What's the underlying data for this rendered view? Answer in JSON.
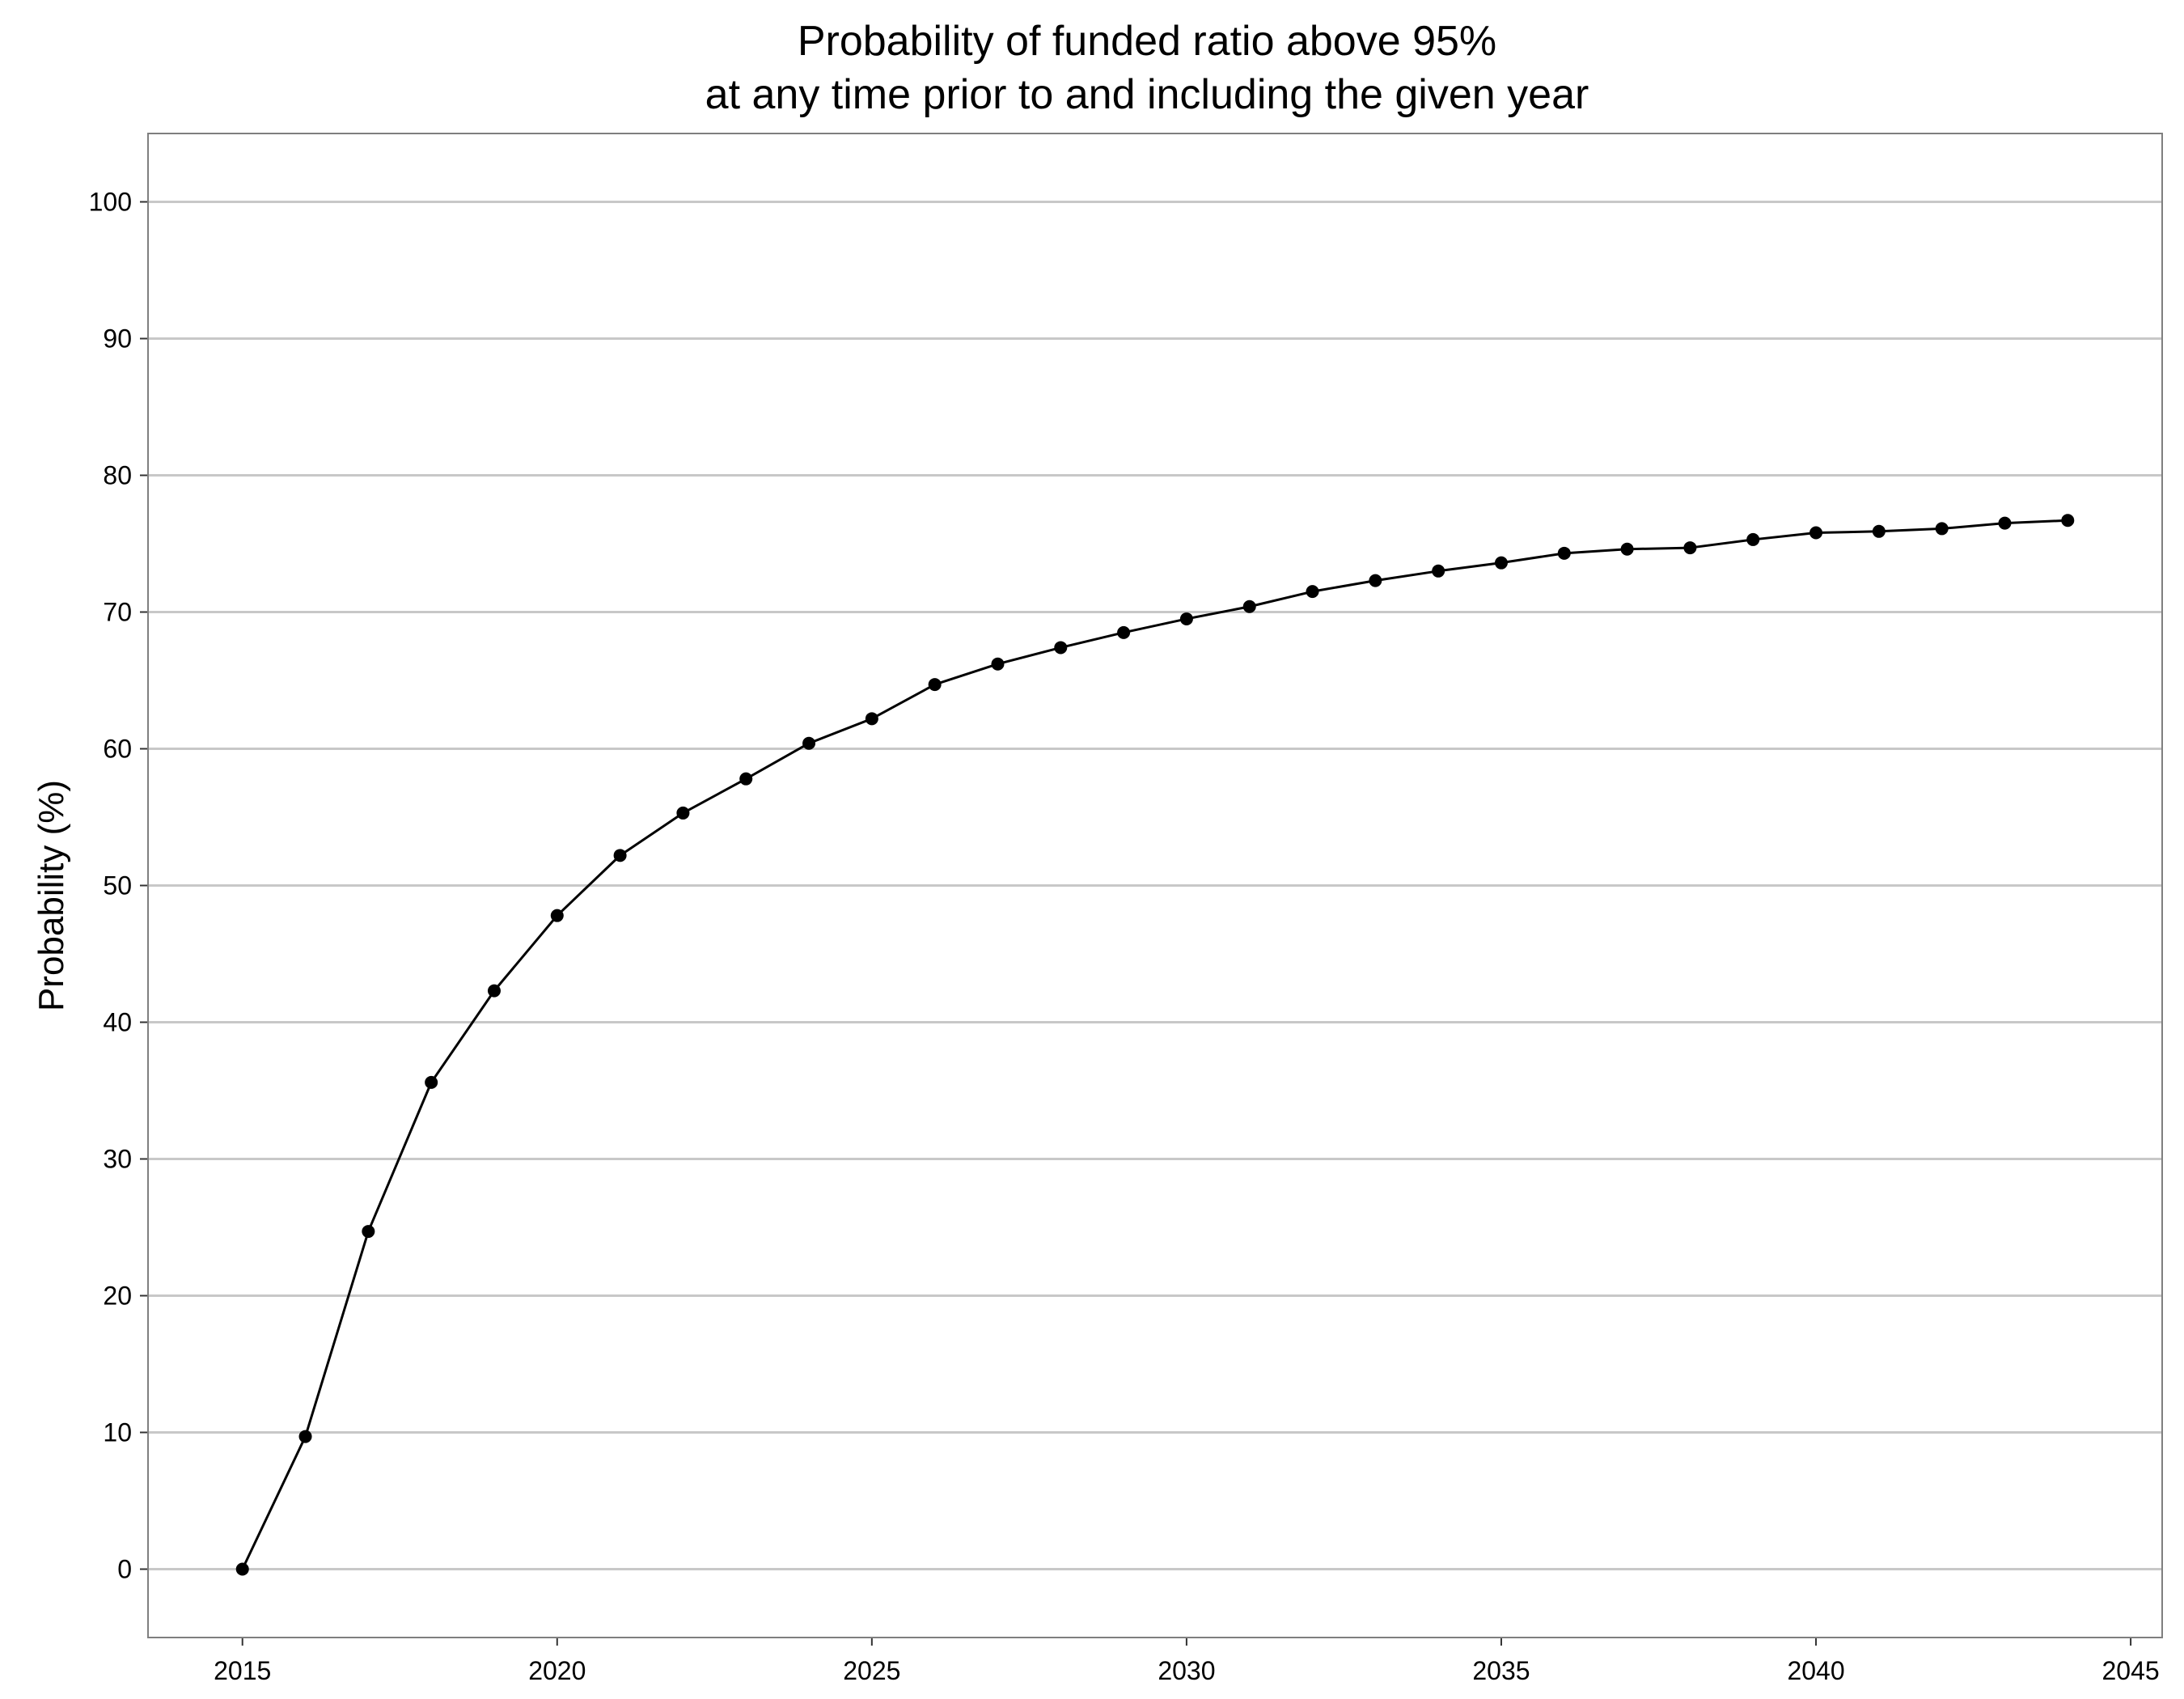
{
  "chart_data": {
    "type": "line",
    "title": "Probability of funded ratio above 95%",
    "subtitle": "at any time prior to and including the given year",
    "xlabel": "",
    "ylabel": "Probability (%)",
    "xlim": [
      2013.5,
      2045.5
    ],
    "ylim": [
      -5,
      105
    ],
    "x_ticks": [
      2015,
      2020,
      2025,
      2030,
      2035,
      2040,
      2045
    ],
    "y_ticks": [
      0,
      10,
      20,
      30,
      40,
      50,
      60,
      70,
      80,
      90,
      100
    ],
    "grid": "horizontal major gridlines",
    "legend": "none",
    "colors": {
      "line": "#000000",
      "points": "#000000",
      "grid": "#c8c8c8",
      "panel_border": "#7f7f7f",
      "background": "#ffffff"
    },
    "series": [
      {
        "x": [
          2015,
          2016,
          2017,
          2018,
          2019,
          2020,
          2021,
          2022,
          2023,
          2024,
          2025,
          2026,
          2027,
          2028,
          2029,
          2030,
          2031,
          2032,
          2033,
          2034,
          2035,
          2036,
          2037,
          2038,
          2039,
          2040,
          2041,
          2042,
          2043,
          2044
        ],
        "values": [
          0,
          9.7,
          24.7,
          35.6,
          42.3,
          47.8,
          52.2,
          55.3,
          57.8,
          60.4,
          62.2,
          64.7,
          66.2,
          67.4,
          68.5,
          69.5,
          70.4,
          71.5,
          72.3,
          73.0,
          73.6,
          74.3,
          74.6,
          74.7,
          75.3,
          75.8,
          75.9,
          76.1,
          76.5,
          76.7
        ]
      }
    ]
  }
}
